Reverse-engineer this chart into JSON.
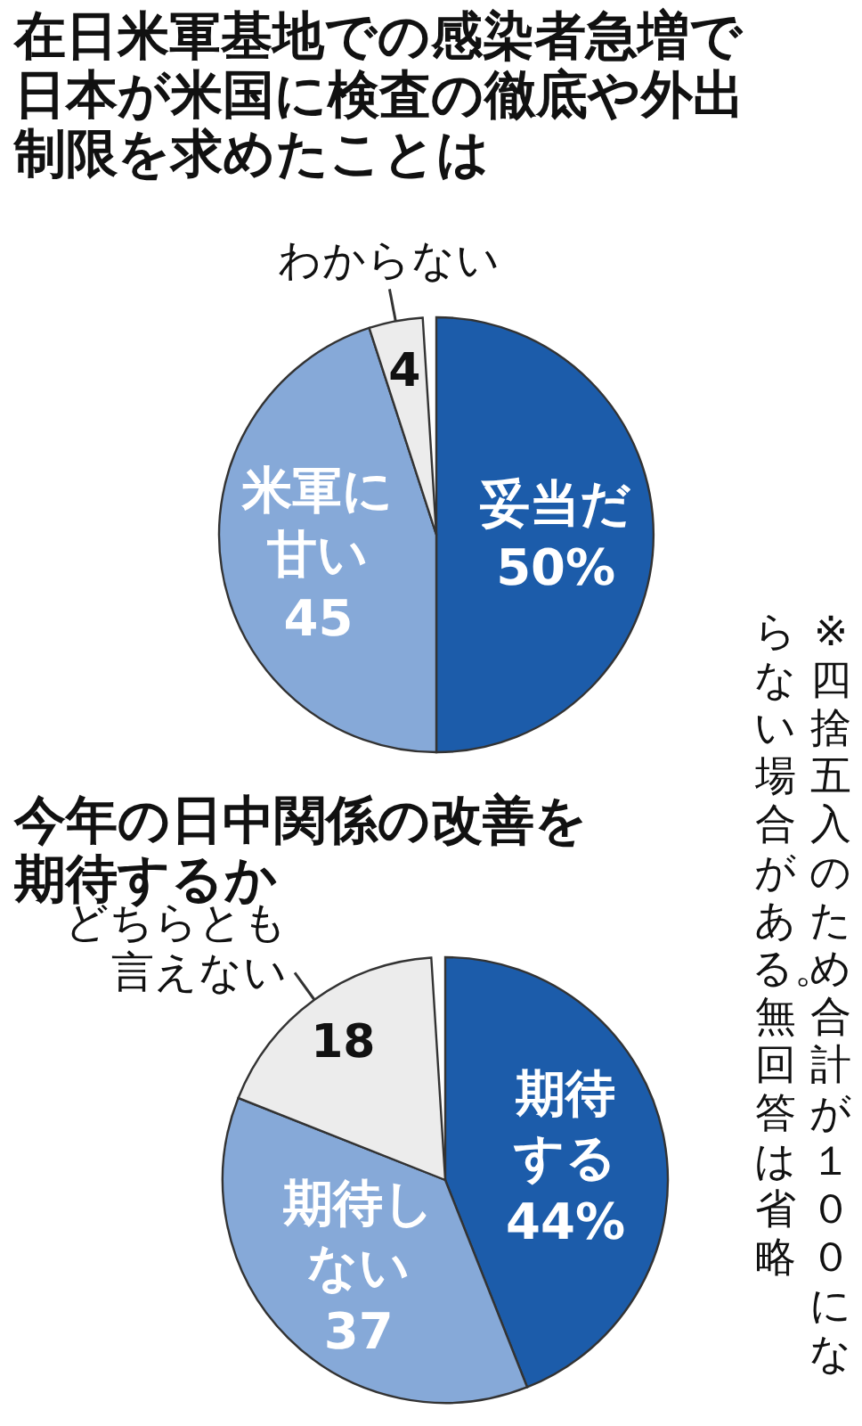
{
  "chart_data": [
    {
      "type": "pie",
      "title": "在日米軍基地での感染者急増で日本が米国に検査の徹底や外出制限を求めたことは",
      "categories": [
        "妥当だ",
        "米軍に甘い",
        "わからない"
      ],
      "values": [
        50,
        45,
        4
      ],
      "value_labels": [
        "50%",
        "45",
        "4"
      ],
      "colors": [
        "#1c5caa",
        "#86a9d8",
        "#ececec"
      ],
      "legend": false
    },
    {
      "type": "pie",
      "title": "今年の日中関係の改善を期待するか",
      "categories": [
        "期待する",
        "期待しない",
        "どちらとも言えない"
      ],
      "values": [
        44,
        37,
        18
      ],
      "value_labels": [
        "44%",
        "37",
        "18"
      ],
      "colors": [
        "#1c5caa",
        "#86a9d8",
        "#ececec"
      ],
      "legend": false,
      "annotations": [
        "※四捨五入のため合計が１００にならない場合がある。無回答は省略"
      ]
    }
  ]
}
